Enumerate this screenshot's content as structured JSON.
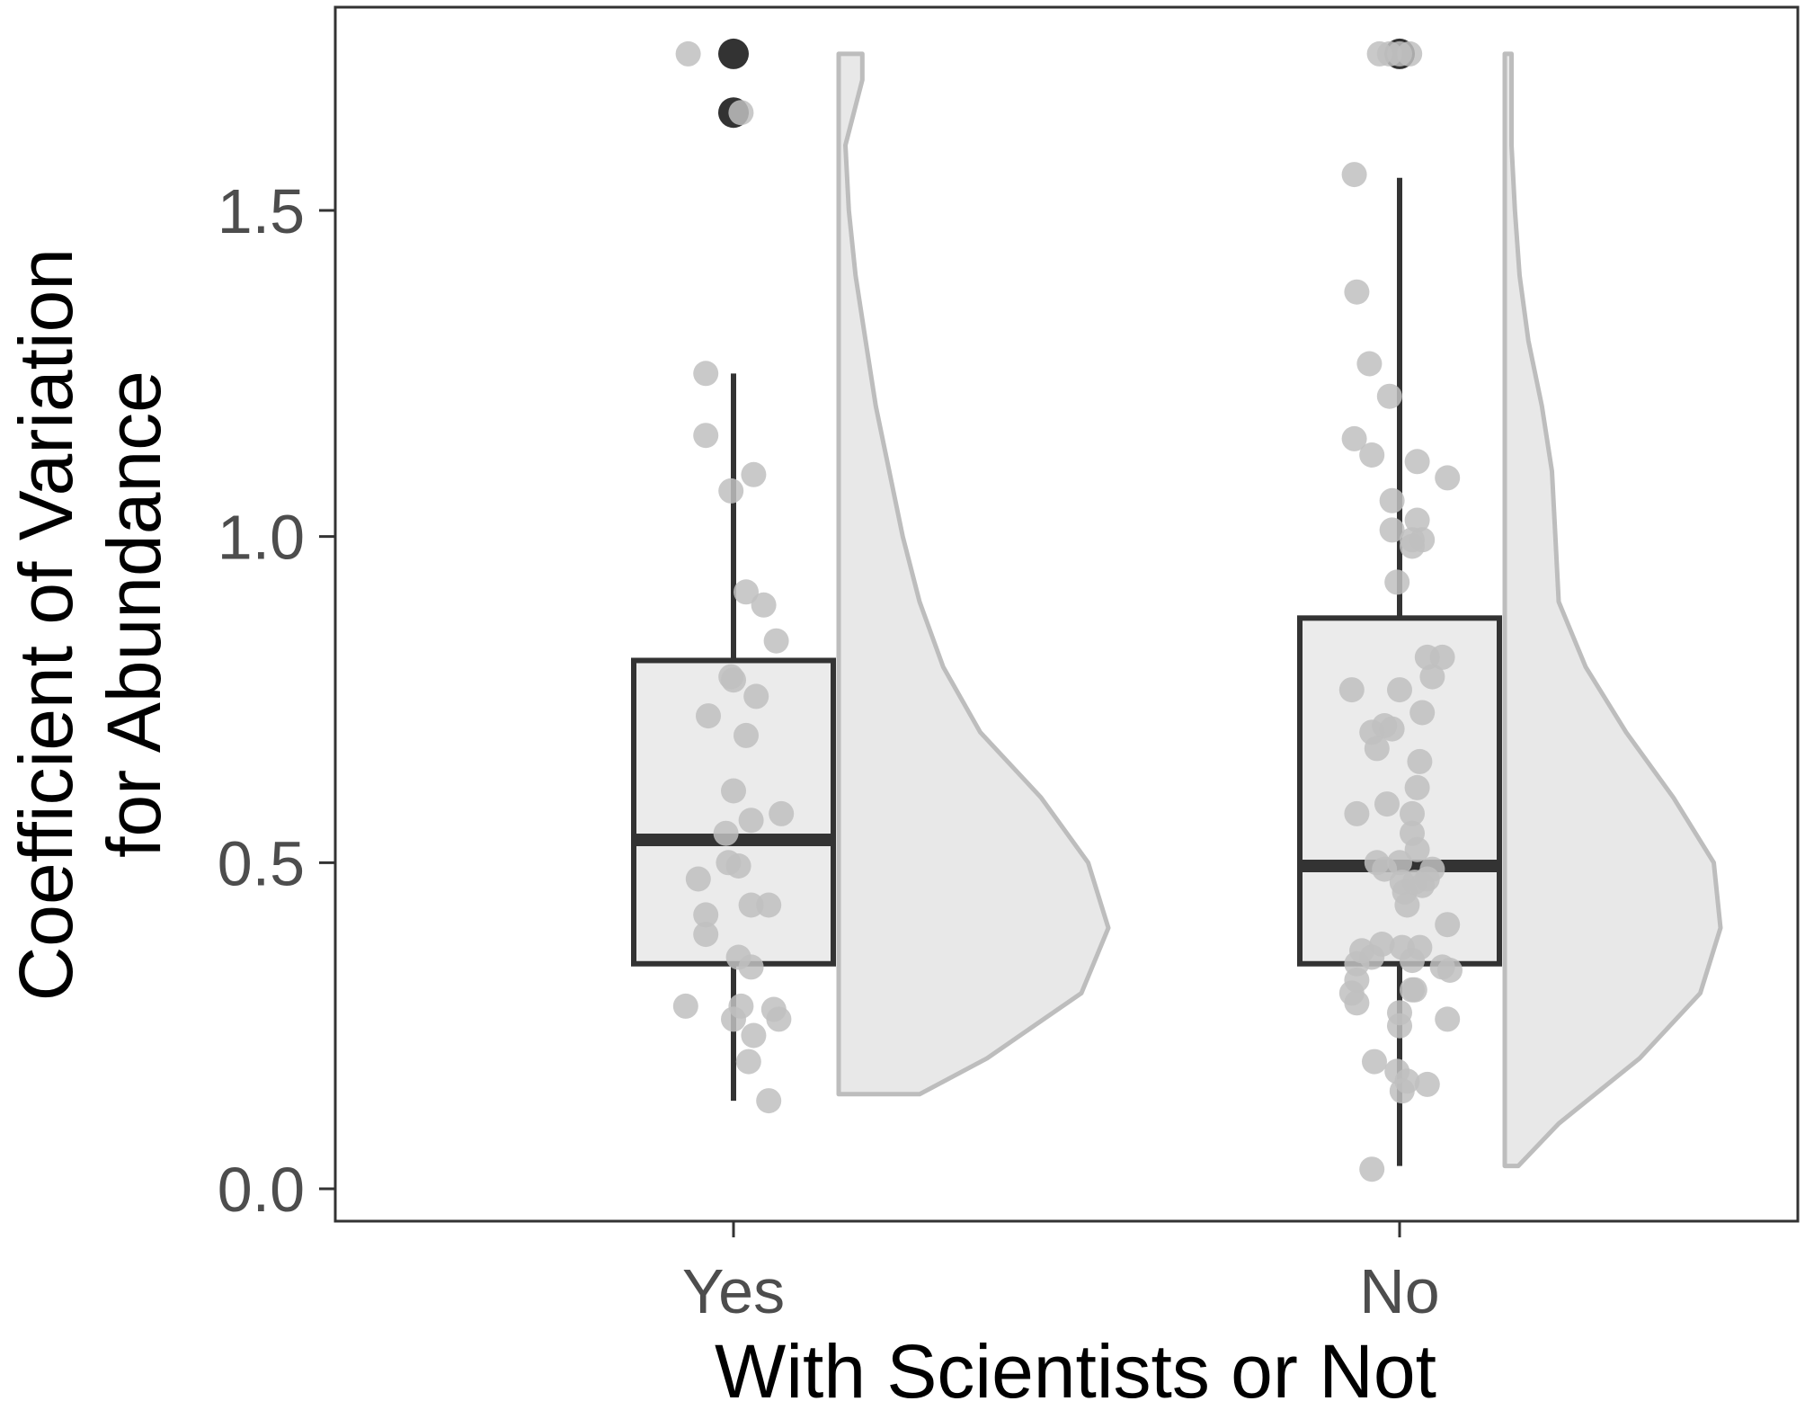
{
  "chart_data": {
    "type": "box",
    "xlabel": "With Scientists or Not",
    "ylabel_lines": [
      "Coefficient of Variation",
      "for Abundance"
    ],
    "ylim": [
      -0.05,
      1.82
    ],
    "yticks": [
      0.0,
      0.5,
      1.0,
      1.5
    ],
    "ytick_labels": [
      "0.0",
      "0.5",
      "1.0",
      "1.5"
    ],
    "grid": false,
    "legend": "none",
    "colors": {
      "box_fill": "#ebebeb",
      "box_stroke": "#333333",
      "point": "#bfbfbf",
      "outlier": "#333333",
      "violin_fill": "#e8e8e8",
      "violin_stroke": "#bdbdbd",
      "panel_border": "#333333"
    },
    "groups": [
      {
        "category": "Yes",
        "box": {
          "lower_whisker": 0.135,
          "q1": 0.345,
          "median": 0.535,
          "q3": 0.81,
          "upper_whisker": 1.25
        },
        "outliers": [
          1.74,
          1.65
        ],
        "points": [
          [
            -0.09,
            1.74
          ],
          [
            0.015,
            1.65
          ],
          [
            -0.055,
            1.25
          ],
          [
            -0.055,
            1.155
          ],
          [
            0.04,
            1.095
          ],
          [
            -0.005,
            1.07
          ],
          [
            0.025,
            0.915
          ],
          [
            0.06,
            0.895
          ],
          [
            0.085,
            0.84
          ],
          [
            -0.005,
            0.785
          ],
          [
            0.0,
            0.78
          ],
          [
            0.045,
            0.755
          ],
          [
            -0.05,
            0.725
          ],
          [
            0.025,
            0.695
          ],
          [
            0.0,
            0.61
          ],
          [
            0.095,
            0.575
          ],
          [
            0.035,
            0.565
          ],
          [
            -0.015,
            0.545
          ],
          [
            -0.01,
            0.5
          ],
          [
            0.01,
            0.495
          ],
          [
            -0.07,
            0.475
          ],
          [
            0.035,
            0.435
          ],
          [
            0.07,
            0.435
          ],
          [
            -0.055,
            0.42
          ],
          [
            -0.055,
            0.39
          ],
          [
            0.01,
            0.355
          ],
          [
            0.035,
            0.34
          ],
          [
            0.015,
            0.28
          ],
          [
            -0.095,
            0.28
          ],
          [
            0.08,
            0.275
          ],
          [
            0.09,
            0.26
          ],
          [
            0.0,
            0.26
          ],
          [
            0.04,
            0.235
          ],
          [
            0.03,
            0.195
          ],
          [
            0.07,
            0.135
          ]
        ],
        "violin_profile": [
          [
            0.145,
            0.12
          ],
          [
            0.2,
            0.22
          ],
          [
            0.3,
            0.36
          ],
          [
            0.4,
            0.4
          ],
          [
            0.5,
            0.37
          ],
          [
            0.6,
            0.3
          ],
          [
            0.7,
            0.21
          ],
          [
            0.8,
            0.155
          ],
          [
            0.9,
            0.12
          ],
          [
            1.0,
            0.095
          ],
          [
            1.1,
            0.075
          ],
          [
            1.2,
            0.055
          ],
          [
            1.3,
            0.04
          ],
          [
            1.4,
            0.025
          ],
          [
            1.5,
            0.015
          ],
          [
            1.6,
            0.01
          ],
          [
            1.7,
            0.035
          ],
          [
            1.74,
            0.035
          ]
        ]
      },
      {
        "category": "No",
        "box": {
          "lower_whisker": 0.035,
          "q1": 0.345,
          "median": 0.495,
          "q3": 0.875,
          "upper_whisker": 1.55
        },
        "outliers": [
          1.74
        ],
        "points": [
          [
            -0.04,
            1.74
          ],
          [
            -0.02,
            1.74
          ],
          [
            0.0,
            1.74
          ],
          [
            0.02,
            1.74
          ],
          [
            -0.09,
            1.555
          ],
          [
            -0.085,
            1.375
          ],
          [
            -0.06,
            1.265
          ],
          [
            -0.02,
            1.215
          ],
          [
            -0.09,
            1.15
          ],
          [
            -0.055,
            1.125
          ],
          [
            0.035,
            1.115
          ],
          [
            0.095,
            1.09
          ],
          [
            -0.015,
            1.055
          ],
          [
            0.035,
            1.025
          ],
          [
            -0.015,
            1.01
          ],
          [
            0.025,
            0.995
          ],
          [
            0.045,
            0.995
          ],
          [
            0.025,
            0.985
          ],
          [
            -0.005,
            0.93
          ],
          [
            0.055,
            0.815
          ],
          [
            0.085,
            0.815
          ],
          [
            0.065,
            0.785
          ],
          [
            -0.095,
            0.765
          ],
          [
            0.0,
            0.765
          ],
          [
            0.045,
            0.73
          ],
          [
            -0.03,
            0.71
          ],
          [
            -0.015,
            0.705
          ],
          [
            -0.055,
            0.7
          ],
          [
            -0.045,
            0.675
          ],
          [
            0.04,
            0.655
          ],
          [
            0.035,
            0.615
          ],
          [
            -0.025,
            0.59
          ],
          [
            -0.085,
            0.575
          ],
          [
            0.025,
            0.575
          ],
          [
            0.025,
            0.545
          ],
          [
            0.035,
            0.52
          ],
          [
            -0.045,
            0.5
          ],
          [
            0.0,
            0.5
          ],
          [
            -0.03,
            0.49
          ],
          [
            0.065,
            0.49
          ],
          [
            0.055,
            0.475
          ],
          [
            0.005,
            0.47
          ],
          [
            0.03,
            0.47
          ],
          [
            0.045,
            0.465
          ],
          [
            0.01,
            0.455
          ],
          [
            0.015,
            0.435
          ],
          [
            0.095,
            0.405
          ],
          [
            -0.035,
            0.375
          ],
          [
            0.005,
            0.37
          ],
          [
            0.04,
            0.37
          ],
          [
            -0.075,
            0.365
          ],
          [
            -0.055,
            0.355
          ],
          [
            0.025,
            0.35
          ],
          [
            -0.085,
            0.345
          ],
          [
            0.085,
            0.34
          ],
          [
            0.1,
            0.335
          ],
          [
            -0.085,
            0.32
          ],
          [
            0.025,
            0.305
          ],
          [
            0.03,
            0.305
          ],
          [
            -0.095,
            0.3
          ],
          [
            -0.085,
            0.285
          ],
          [
            0.0,
            0.27
          ],
          [
            0.095,
            0.26
          ],
          [
            0.0,
            0.25
          ],
          [
            -0.05,
            0.195
          ],
          [
            -0.005,
            0.18
          ],
          [
            0.015,
            0.165
          ],
          [
            0.055,
            0.16
          ],
          [
            0.005,
            0.15
          ],
          [
            -0.055,
            0.03
          ]
        ],
        "violin_profile": [
          [
            0.035,
            0.02
          ],
          [
            0.1,
            0.08
          ],
          [
            0.2,
            0.2
          ],
          [
            0.3,
            0.29
          ],
          [
            0.4,
            0.32
          ],
          [
            0.5,
            0.31
          ],
          [
            0.6,
            0.25
          ],
          [
            0.7,
            0.18
          ],
          [
            0.8,
            0.12
          ],
          [
            0.9,
            0.08
          ],
          [
            1.0,
            0.075
          ],
          [
            1.1,
            0.07
          ],
          [
            1.2,
            0.055
          ],
          [
            1.3,
            0.035
          ],
          [
            1.4,
            0.022
          ],
          [
            1.5,
            0.015
          ],
          [
            1.6,
            0.01
          ],
          [
            1.7,
            0.01
          ],
          [
            1.74,
            0.01
          ]
        ]
      }
    ]
  }
}
